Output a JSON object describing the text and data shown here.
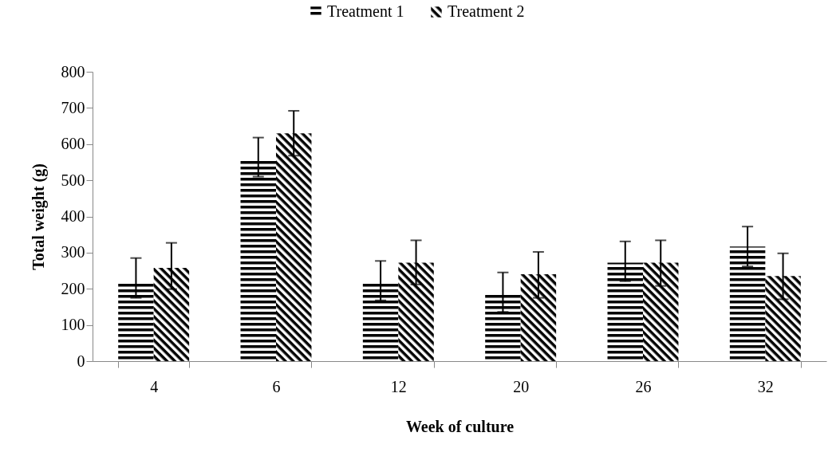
{
  "chart_data": {
    "type": "bar",
    "xlabel": "Week of culture",
    "ylabel": "Total weight (g)",
    "categories": [
      "4",
      "6",
      "12",
      "20",
      "26",
      "32"
    ],
    "series": [
      {
        "name": "Treatment 1",
        "color": "#000000",
        "values": [
          220,
          560,
          220,
          185,
          272,
          317
        ],
        "errors": [
          [
            175,
            285
          ],
          [
            510,
            618
          ],
          [
            168,
            277
          ],
          [
            136,
            245
          ],
          [
            221,
            331
          ],
          [
            262,
            372
          ]
        ]
      },
      {
        "name": "Treatment 2",
        "color": "#000000",
        "values": [
          258,
          630,
          272,
          240,
          272,
          235
        ],
        "errors": [
          [
            199,
            327
          ],
          [
            568,
            692
          ],
          [
            212,
            334
          ],
          [
            175,
            302
          ],
          [
            208,
            334
          ],
          [
            171,
            298
          ]
        ]
      }
    ],
    "ylim": [
      0,
      800
    ],
    "yticks": [
      0,
      100,
      200,
      300,
      400,
      500,
      600,
      700,
      800
    ],
    "grid": false,
    "legend": "top"
  }
}
